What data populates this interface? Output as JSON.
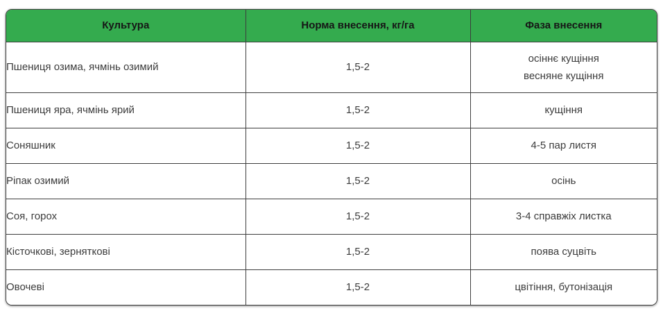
{
  "table": {
    "columns": [
      {
        "label": "Культура"
      },
      {
        "label": "Норма внесення, кг/га"
      },
      {
        "label": "Фаза внесення"
      }
    ],
    "rows": [
      {
        "culture": "Пшениця озима, ячмінь озимий",
        "rate": "1,5-2",
        "phase_lines": [
          "осіннє кущіння",
          "весняне кущіння"
        ]
      },
      {
        "culture": "Пшениця яра, ячмінь ярий",
        "rate": "1,5-2",
        "phase_lines": [
          "кущіння"
        ]
      },
      {
        "culture": "Соняшник",
        "rate": "1,5-2",
        "phase_lines": [
          "4-5 пар листя"
        ]
      },
      {
        "culture": "Ріпак озимий",
        "rate": "1,5-2",
        "phase_lines": [
          "осінь"
        ]
      },
      {
        "culture": "Соя, горох",
        "rate": "1,5-2",
        "phase_lines": [
          "3-4 справжіх листка"
        ]
      },
      {
        "culture": "Кісточкові, зерняткові",
        "rate": "1,5-2",
        "phase_lines": [
          "поява суцвіть"
        ]
      },
      {
        "culture": "Овочеві",
        "rate": "1,5-2",
        "phase_lines": [
          "цвітіння, бутонізація"
        ]
      }
    ],
    "colors": {
      "header_bg": "#34ab4e",
      "header_text": "#161616",
      "cell_text": "#3b3b3b",
      "border": "#3d3d3d",
      "page_bg": "#ffffff"
    }
  }
}
